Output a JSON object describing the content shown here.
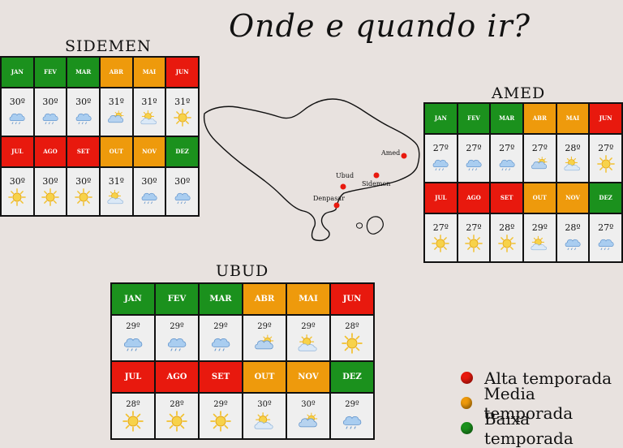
{
  "title": "Onde e quando ir?",
  "colors": {
    "alta": "#e8190e",
    "media": "#ee9a0c",
    "baixa": "#1b911d"
  },
  "regions": {
    "sidemen": {
      "name": "SIDEMEN",
      "rows": [
        {
          "months": [
            {
              "label": "JAN",
              "season": "baixa",
              "temp": "30º",
              "icon": "rain-cloud-icon"
            },
            {
              "label": "FEV",
              "season": "baixa",
              "temp": "30º",
              "icon": "rain-cloud-icon"
            },
            {
              "label": "MAR",
              "season": "baixa",
              "temp": "30º",
              "icon": "rain-cloud-icon"
            },
            {
              "label": "ABR",
              "season": "media",
              "temp": "31º",
              "icon": "partly-cloudy-icon"
            },
            {
              "label": "MAI",
              "season": "media",
              "temp": "31º",
              "icon": "sun-cloud-icon"
            },
            {
              "label": "JUN",
              "season": "alta",
              "temp": "31º",
              "icon": "sun-icon"
            }
          ]
        },
        {
          "months": [
            {
              "label": "JUL",
              "season": "alta",
              "temp": "30º",
              "icon": "sun-icon"
            },
            {
              "label": "AGO",
              "season": "alta",
              "temp": "30º",
              "icon": "sun-icon"
            },
            {
              "label": "SET",
              "season": "alta",
              "temp": "30º",
              "icon": "sun-icon"
            },
            {
              "label": "OUT",
              "season": "media",
              "temp": "31º",
              "icon": "sun-cloud-icon"
            },
            {
              "label": "NOV",
              "season": "media",
              "temp": "30º",
              "icon": "rain-cloud-icon"
            },
            {
              "label": "DEZ",
              "season": "baixa",
              "temp": "30º",
              "icon": "rain-cloud-icon"
            }
          ]
        }
      ]
    },
    "amed": {
      "name": "AMED",
      "rows": [
        {
          "months": [
            {
              "label": "JAN",
              "season": "baixa",
              "temp": "27º",
              "icon": "rain-cloud-icon"
            },
            {
              "label": "FEV",
              "season": "baixa",
              "temp": "27º",
              "icon": "rain-cloud-icon"
            },
            {
              "label": "MAR",
              "season": "baixa",
              "temp": "27º",
              "icon": "rain-cloud-icon"
            },
            {
              "label": "ABR",
              "season": "media",
              "temp": "27º",
              "icon": "partly-cloudy-icon"
            },
            {
              "label": "MAI",
              "season": "media",
              "temp": "28º",
              "icon": "sun-cloud-icon"
            },
            {
              "label": "JUN",
              "season": "alta",
              "temp": "27º",
              "icon": "sun-icon"
            }
          ]
        },
        {
          "months": [
            {
              "label": "JUL",
              "season": "alta",
              "temp": "27º",
              "icon": "sun-icon"
            },
            {
              "label": "AGO",
              "season": "alta",
              "temp": "27º",
              "icon": "sun-icon"
            },
            {
              "label": "SET",
              "season": "alta",
              "temp": "28º",
              "icon": "sun-icon"
            },
            {
              "label": "OUT",
              "season": "media",
              "temp": "29º",
              "icon": "sun-cloud-icon"
            },
            {
              "label": "NOV",
              "season": "media",
              "temp": "28º",
              "icon": "rain-cloud-icon"
            },
            {
              "label": "DEZ",
              "season": "baixa",
              "temp": "27º",
              "icon": "rain-cloud-icon"
            }
          ]
        }
      ]
    },
    "ubud": {
      "name": "UBUD",
      "rows": [
        {
          "months": [
            {
              "label": "JAN",
              "season": "baixa",
              "temp": "29º",
              "icon": "rain-cloud-icon"
            },
            {
              "label": "FEV",
              "season": "baixa",
              "temp": "29º",
              "icon": "rain-cloud-icon"
            },
            {
              "label": "MAR",
              "season": "baixa",
              "temp": "29º",
              "icon": "rain-cloud-icon"
            },
            {
              "label": "ABR",
              "season": "media",
              "temp": "29º",
              "icon": "partly-cloudy-icon"
            },
            {
              "label": "MAI",
              "season": "media",
              "temp": "29º",
              "icon": "sun-cloud-icon"
            },
            {
              "label": "JUN",
              "season": "alta",
              "temp": "28º",
              "icon": "sun-icon"
            }
          ]
        },
        {
          "months": [
            {
              "label": "JUL",
              "season": "alta",
              "temp": "28º",
              "icon": "sun-icon"
            },
            {
              "label": "AGO",
              "season": "alta",
              "temp": "28º",
              "icon": "sun-icon"
            },
            {
              "label": "SET",
              "season": "alta",
              "temp": "29º",
              "icon": "sun-icon"
            },
            {
              "label": "OUT",
              "season": "media",
              "temp": "30º",
              "icon": "sun-cloud-icon"
            },
            {
              "label": "NOV",
              "season": "media",
              "temp": "30º",
              "icon": "partly-cloudy-icon"
            },
            {
              "label": "DEZ",
              "season": "baixa",
              "temp": "29º",
              "icon": "rain-cloud-icon"
            }
          ]
        }
      ]
    }
  },
  "map": {
    "places": [
      {
        "name": "Amed"
      },
      {
        "name": "Ubud"
      },
      {
        "name": "Sidemen"
      },
      {
        "name": "Denpasar"
      }
    ]
  },
  "legend": [
    {
      "label": "Alta temporada",
      "season": "alta"
    },
    {
      "label": "Media temporada",
      "season": "media"
    },
    {
      "label": "Baixa temporada",
      "season": "baixa"
    }
  ]
}
